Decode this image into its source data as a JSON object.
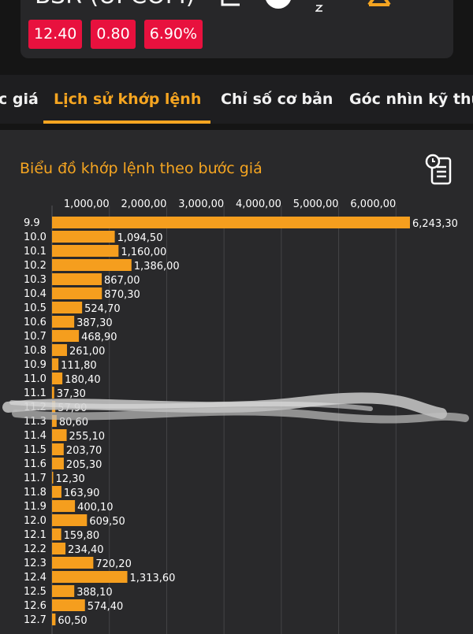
{
  "header": {
    "ticker": "BSR (UPCOM)",
    "badges": [
      "12.40",
      "0.80",
      "6.90%"
    ],
    "icons": [
      "chart-icon",
      "info-icon",
      "notification-icon",
      "alert-icon"
    ]
  },
  "tabs": [
    {
      "label": "c giá",
      "active": false
    },
    {
      "label": "Lịch sử khớp lệnh",
      "active": true
    },
    {
      "label": "Chỉ số cơ bản",
      "active": false
    },
    {
      "label": "Góc nhìn kỹ thu",
      "active": false
    }
  ],
  "panel": {
    "icon": "report-icon"
  },
  "colors": {
    "accent": "#f5a521",
    "bar": "#f59e1e",
    "badge": "#e8113e",
    "panel": "#29292b",
    "background": "#151515"
  },
  "chart_data": {
    "type": "bar",
    "orientation": "horizontal",
    "title": "Biểu đồ khớp lệnh theo bước giá",
    "xlim": [
      0,
      6243.3
    ],
    "xticks": [
      1000,
      2000,
      3000,
      4000,
      5000,
      6000
    ],
    "xtick_labels": [
      "1,000,00",
      "2,000,00",
      "3,000,00",
      "4,000,00",
      "5,000,00",
      "6,000,00"
    ],
    "grid": true,
    "categories": [
      "9.9",
      "10.0",
      "10.1",
      "10.2",
      "10.3",
      "10.4",
      "10.5",
      "10.6",
      "10.7",
      "10.8",
      "10.9",
      "11.0",
      "11.1",
      "11.2",
      "11.3",
      "11.4",
      "11.5",
      "11.6",
      "11.7",
      "11.8",
      "11.9",
      "12.0",
      "12.1",
      "12.2",
      "12.3",
      "12.4",
      "12.5",
      "12.6",
      "12.7"
    ],
    "values": [
      6243.3,
      1094.5,
      1160.0,
      1386.0,
      867.0,
      870.3,
      524.7,
      387.3,
      468.9,
      261.0,
      111.8,
      180.4,
      37.3,
      57.9,
      80.6,
      255.1,
      203.7,
      205.3,
      12.3,
      163.9,
      400.1,
      609.5,
      159.8,
      234.4,
      720.2,
      1313.6,
      388.1,
      574.4,
      60.5
    ],
    "value_labels": [
      "6,243,30",
      "1,094,50",
      "1,160,00",
      "1,386,00",
      "867,00",
      "870,30",
      "524,70",
      "387,30",
      "468,90",
      "261,00",
      "111,80",
      "180,40",
      "37,30",
      "57,90",
      "80,60",
      "255,10",
      "203,70",
      "205,30",
      "12,30",
      "163,90",
      "400,10",
      "609,50",
      "159,80",
      "234,40",
      "720,20",
      "1,313,60",
      "388,10",
      "574,40",
      "60,50"
    ]
  }
}
